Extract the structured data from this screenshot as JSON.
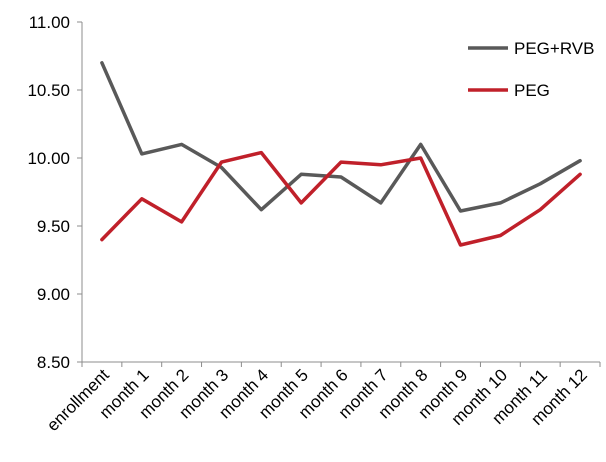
{
  "chart_data": {
    "type": "line",
    "categories": [
      "enrollment",
      "month 1",
      "month 2",
      "month 3",
      "month 4",
      "month 5",
      "month 6",
      "month 7",
      "month 8",
      "month 9",
      "month 10",
      "month 11",
      "month 12"
    ],
    "series": [
      {
        "name": "PEG+RVB",
        "color": "#595959",
        "values": [
          10.7,
          10.03,
          10.1,
          9.93,
          9.62,
          9.88,
          9.86,
          9.67,
          10.1,
          9.61,
          9.67,
          9.81,
          9.98
        ]
      },
      {
        "name": "PEG",
        "color": "#c0202a",
        "values": [
          9.4,
          9.7,
          9.53,
          9.97,
          10.04,
          9.67,
          9.97,
          9.95,
          10.0,
          9.36,
          9.43,
          9.62,
          9.88
        ]
      }
    ],
    "ylim": [
      8.5,
      11.0
    ],
    "yticks": [
      "11.00",
      "10.50",
      "10.00",
      "9.50",
      "9.00",
      "8.50"
    ],
    "legend_position": "top-right",
    "grid": false
  }
}
